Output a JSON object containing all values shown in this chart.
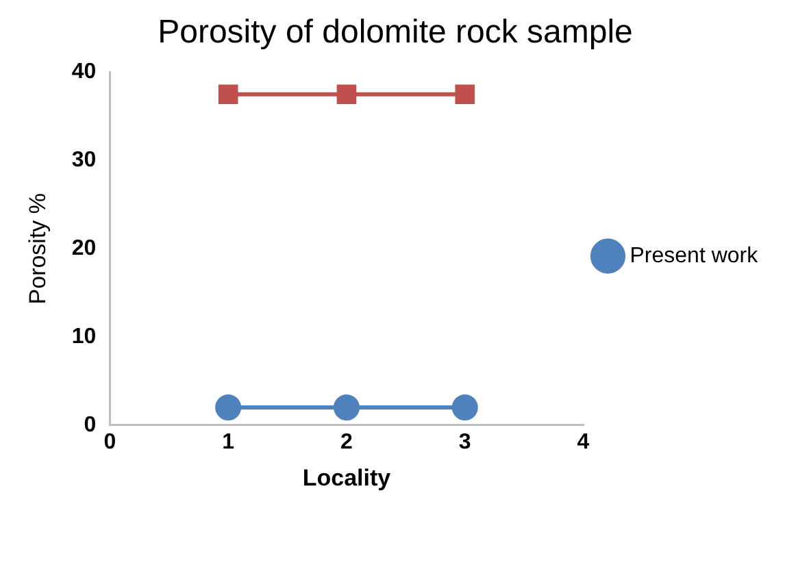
{
  "chart_data": {
    "type": "line",
    "title": "Porosity of dolomite rock sample",
    "xlabel": "Locality",
    "ylabel": "Porosity %",
    "x": [
      1,
      2,
      3
    ],
    "series": [
      {
        "color": "#c0504d",
        "marker": "square",
        "values": [
          37.5,
          37.5,
          37.5
        ]
      },
      {
        "name": "Present work",
        "color": "#4f81bd",
        "marker": "circle",
        "values": [
          2,
          2,
          2
        ]
      }
    ],
    "xlim": [
      0,
      4
    ],
    "xticks": [
      0,
      1,
      2,
      3,
      4
    ],
    "ylim": [
      0,
      40
    ],
    "yticks": [
      0,
      10,
      20,
      30,
      40
    ],
    "grid": false,
    "legend": "right"
  }
}
